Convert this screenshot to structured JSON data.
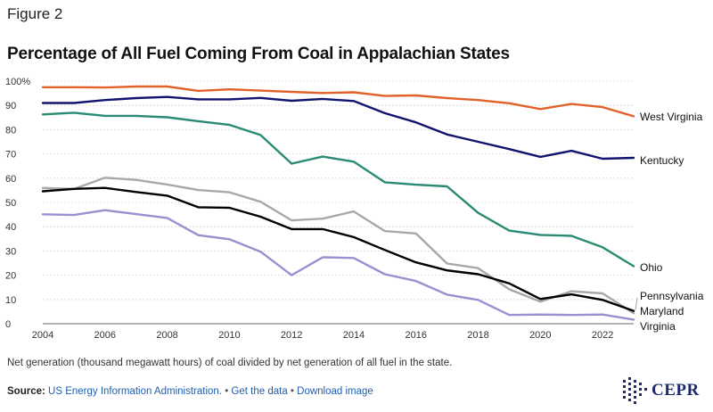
{
  "figure_label": "Figure 2",
  "note": "Net generation (thousand megawatt hours) of coal divided by net generation of all fuel in the state.",
  "source": {
    "label": "Source:",
    "agency": "US Energy Information Administration.",
    "sep1": "•",
    "get_data": "Get the data",
    "sep2": "•",
    "download": "Download image"
  },
  "logo_text": "CEPR",
  "colors": {
    "West Virginia": "#e0622a",
    "Kentucky": "#10146e",
    "Ohio": "#2a8a73",
    "Pennsylvania": "#a8a8a8",
    "Maryland": "#000000",
    "Virginia": "#9a90cf",
    "grid": "#d6d6d6",
    "axis": "#666666"
  },
  "chart_data": {
    "type": "line",
    "title": "Percentage of All Fuel Coming From Coal in Appalachian States",
    "xlabel": "",
    "ylabel": "",
    "x": [
      2004,
      2005,
      2006,
      2007,
      2008,
      2009,
      2010,
      2011,
      2012,
      2013,
      2014,
      2015,
      2016,
      2017,
      2018,
      2019,
      2020,
      2021,
      2022,
      2023
    ],
    "xticks": [
      2004,
      2006,
      2008,
      2010,
      2012,
      2014,
      2016,
      2018,
      2020,
      2022
    ],
    "xlim": [
      2004,
      2023
    ],
    "ylim": [
      0,
      100
    ],
    "yticks": [
      0,
      10,
      20,
      30,
      40,
      50,
      60,
      70,
      80,
      90,
      100
    ],
    "ytick_labels": [
      "0",
      "10",
      "20",
      "30",
      "40",
      "50",
      "60",
      "70",
      "80",
      "90",
      "100%"
    ],
    "grid": "horizontal",
    "legend": "direct labels at line ends",
    "series": [
      {
        "name": "West Virginia",
        "values": [
          97.5,
          97.5,
          97.4,
          97.8,
          97.8,
          96.0,
          96.6,
          96.1,
          95.6,
          95.1,
          95.4,
          93.9,
          94.1,
          93.0,
          92.2,
          90.9,
          88.5,
          90.6,
          89.3,
          85.5
        ]
      },
      {
        "name": "Kentucky",
        "values": [
          91.0,
          91.0,
          92.2,
          93.0,
          93.5,
          92.5,
          92.5,
          93.1,
          91.9,
          92.7,
          91.8,
          86.8,
          83.0,
          78.0,
          75.0,
          72.0,
          68.8,
          71.3,
          68.0,
          68.4
        ]
      },
      {
        "name": "Ohio",
        "values": [
          86.3,
          87.0,
          85.7,
          85.7,
          85.1,
          83.5,
          82.0,
          77.8,
          66.0,
          68.9,
          66.8,
          58.3,
          57.3,
          56.6,
          45.7,
          38.4,
          36.6,
          36.2,
          31.5,
          23.7
        ]
      },
      {
        "name": "Pennsylvania",
        "values": [
          56.0,
          55.5,
          60.2,
          59.3,
          57.4,
          55.1,
          54.2,
          50.3,
          42.6,
          43.3,
          46.3,
          38.2,
          37.2,
          24.8,
          22.9,
          14.2,
          9.1,
          13.4,
          12.5,
          4.3
        ]
      },
      {
        "name": "Maryland",
        "values": [
          54.6,
          55.6,
          56.0,
          54.3,
          52.8,
          48.0,
          47.8,
          44.1,
          39.0,
          39.0,
          35.7,
          30.4,
          25.3,
          22.0,
          20.4,
          16.6,
          10.2,
          12.1,
          9.8,
          5.3
        ]
      },
      {
        "name": "Virginia",
        "values": [
          45.1,
          44.8,
          46.8,
          45.2,
          43.6,
          36.5,
          34.8,
          29.7,
          20.0,
          27.4,
          27.1,
          20.4,
          17.6,
          12.0,
          9.8,
          3.6,
          3.8,
          3.6,
          3.8,
          1.7
        ]
      }
    ]
  }
}
